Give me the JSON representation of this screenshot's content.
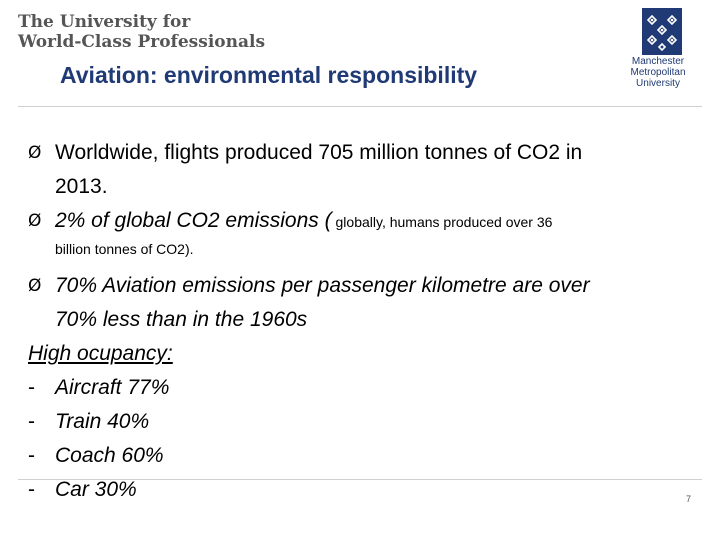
{
  "header": {
    "tagline_line1": "The University for",
    "tagline_line2": "World-Class Professionals",
    "title": "Aviation: environmental responsibility",
    "logo": {
      "icon": "mmu-logo-icon",
      "line1": "Manchester",
      "line2": "Metropolitan",
      "line3": "University",
      "color": "#1f3a74"
    }
  },
  "content": {
    "bullet_marker": "Ø",
    "bullet1_line1": "Worldwide, flights produced 705 million tonnes of CO2 in",
    "bullet1_line2": "2013.",
    "bullet2_main": "2% of global CO2 emissions (",
    "bullet2_small": " globally, humans produced over 36",
    "bullet2_line2": "billion tonnes of CO2).",
    "bullet3_line1": "70% Aviation emissions per passenger kilometre are over",
    "bullet3_line2": "70% less than in the 1960s",
    "occupancy_heading": "High ocupancy:",
    "dash_marker": "-",
    "occupancy_items": [
      "Aircraft 77%",
      "Train 40%",
      "Coach 60%",
      "Car 30%"
    ]
  },
  "footer": {
    "page_number": "7"
  }
}
